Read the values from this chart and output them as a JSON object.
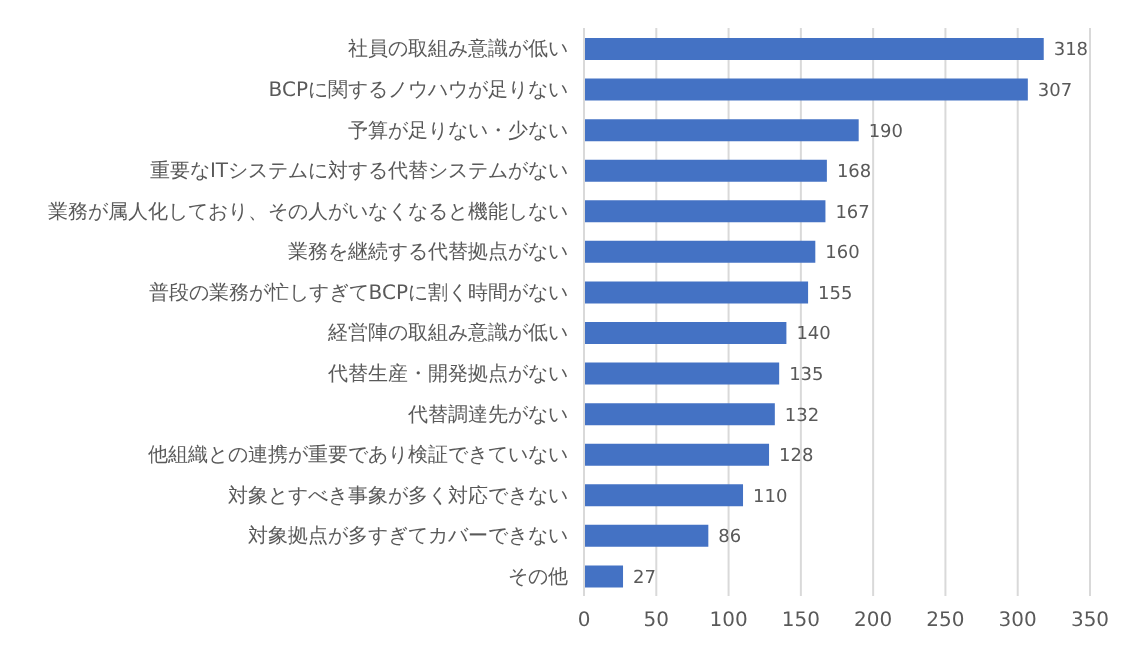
{
  "chart_data": {
    "type": "bar",
    "orientation": "horizontal",
    "categories": [
      "社員の取組み意識が低い",
      "BCPに関するノウハウが足りない",
      "予算が足りない・少ない",
      "重要なITシステムに対する代替システムがない",
      "業務が属人化しており、その人がいなくなると機能しない",
      "業務を継続する代替拠点がない",
      "普段の業務が忙しすぎてBCPに割く時間がない",
      "経営陣の取組み意識が低い",
      "代替生産・開発拠点がない",
      "代替調達先がない",
      "他組織との連携が重要であり検証できていない",
      "対象とすべき事象が多く対応できない",
      "対象拠点が多すぎてカバーできない",
      "その他"
    ],
    "values": [
      318,
      307,
      190,
      168,
      167,
      160,
      155,
      140,
      135,
      132,
      128,
      110,
      86,
      27
    ],
    "color": "#4472c4",
    "xlim": [
      0,
      350
    ],
    "xticks": [
      0,
      50,
      100,
      150,
      200,
      250,
      300,
      350
    ],
    "grid": "x",
    "data_labels": true
  }
}
